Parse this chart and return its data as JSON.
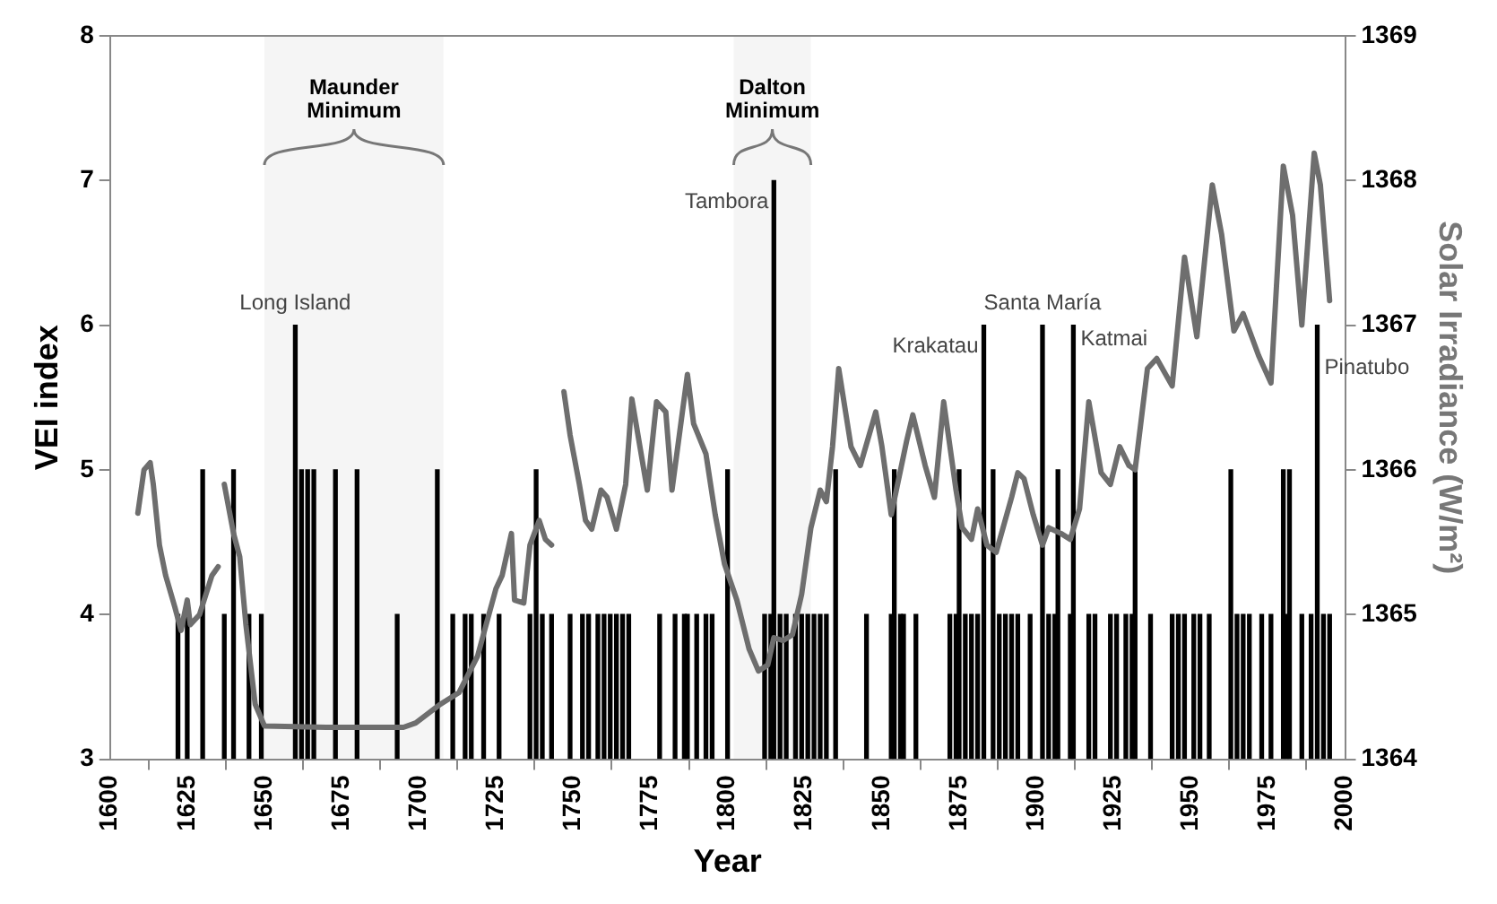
{
  "chart_data": {
    "type": "bar",
    "xlabel": "Year",
    "ylabel": "VEI index",
    "y2label": "Solar Irradiance (W/m²)",
    "xlim": [
      1600,
      2000
    ],
    "xticks": [
      1600,
      1625,
      1650,
      1675,
      1700,
      1725,
      1750,
      1775,
      1800,
      1825,
      1850,
      1875,
      1900,
      1925,
      1950,
      1975,
      2000
    ],
    "ylim": [
      3,
      8
    ],
    "yticks": [
      3,
      4,
      5,
      6,
      7,
      8
    ],
    "y2lim": [
      1364,
      1369
    ],
    "y2ticks": [
      1364,
      1365,
      1366,
      1367,
      1368,
      1369
    ],
    "grid": false,
    "legend": false,
    "marker": "none",
    "line_style": "solid",
    "series": [
      {
        "color": "#000000",
        "x": [
          1622,
          1625,
          1630,
          1637,
          1640,
          1645,
          1649,
          1660,
          1662,
          1664,
          1666,
          1673,
          1680,
          1693,
          1706,
          1711,
          1715,
          1717,
          1721,
          1726,
          1736,
          1738,
          1740,
          1743,
          1749,
          1753,
          1755,
          1758,
          1760,
          1762,
          1764,
          1766,
          1768,
          1778,
          1783,
          1786,
          1787,
          1790,
          1793,
          1795,
          1800,
          1812,
          1814,
          1815,
          1817,
          1819,
          1822,
          1824,
          1826,
          1828,
          1830,
          1832,
          1835,
          1845,
          1853,
          1854,
          1856,
          1857,
          1861,
          1872,
          1874,
          1875,
          1877,
          1879,
          1881,
          1883,
          1886,
          1888,
          1890,
          1892,
          1894,
          1898,
          1902,
          1904,
          1906,
          1907,
          1911,
          1912,
          1917,
          1919,
          1924,
          1926,
          1929,
          1931,
          1932,
          1937,
          1944,
          1946,
          1948,
          1951,
          1953,
          1956,
          1963,
          1965,
          1967,
          1969,
          1973,
          1976,
          1980,
          1981,
          1982,
          1986,
          1989,
          1991,
          1993,
          1995
        ],
        "values": [
          4,
          4,
          5,
          4,
          5,
          4,
          4,
          6,
          5,
          5,
          5,
          5,
          5,
          4,
          5,
          4,
          4,
          4,
          4,
          4,
          4,
          5,
          4,
          4,
          4,
          4,
          4,
          4,
          4,
          4,
          4,
          4,
          4,
          4,
          4,
          4,
          4,
          4,
          4,
          4,
          5,
          4,
          4,
          7,
          4,
          4,
          4,
          4,
          4,
          4,
          4,
          4,
          5,
          4,
          4,
          5,
          4,
          4,
          4,
          4,
          4,
          5,
          4,
          4,
          4,
          6,
          5,
          4,
          4,
          4,
          4,
          4,
          6,
          4,
          4,
          5,
          4,
          6,
          4,
          4,
          4,
          4,
          4,
          4,
          5,
          4,
          4,
          4,
          4,
          4,
          4,
          4,
          5,
          4,
          4,
          4,
          4,
          4,
          5,
          4,
          5,
          4,
          4,
          6,
          4,
          4
        ]
      },
      {
        "type": "line",
        "axis": "y2",
        "color": "#6e6e6e",
        "x": [
          1609,
          1611,
          1613,
          1614,
          1616,
          1618,
          1621,
          1623,
          1625,
          1626,
          1629,
          1633,
          1635,
          1636,
          1637,
          1640,
          1642,
          1644,
          1647,
          1650,
          1670,
          1695,
          1699,
          1707,
          1713,
          1719,
          1725,
          1727,
          1730,
          1731,
          1734,
          1736,
          1739,
          1741,
          1743,
          1745,
          1747,
          1749,
          1752,
          1754,
          1756,
          1759,
          1761,
          1764,
          1767,
          1769,
          1774,
          1777,
          1780,
          1782,
          1787,
          1789,
          1793,
          1796,
          1799,
          1803,
          1807,
          1810,
          1813,
          1815,
          1818,
          1821,
          1824,
          1827,
          1830,
          1832,
          1834,
          1836,
          1840,
          1843,
          1848,
          1850,
          1853,
          1858,
          1860,
          1864,
          1867,
          1870,
          1874,
          1876,
          1879,
          1881,
          1884,
          1887,
          1892,
          1894,
          1896,
          1899,
          1902,
          1904,
          1908,
          1911,
          1914,
          1917,
          1921,
          1924,
          1927,
          1930,
          1932,
          1936,
          1939,
          1944,
          1948,
          1952,
          1957,
          1960,
          1964,
          1967,
          1972,
          1976,
          1980,
          1983,
          1986,
          1990,
          1992,
          1995
        ],
        "values": [
          1365.7,
          1366.0,
          1366.05,
          1365.9,
          1365.48,
          1365.27,
          1365.05,
          1364.89,
          1365.1,
          1364.93,
          1365.0,
          1365.27,
          1365.33,
          null,
          1365.9,
          1365.56,
          1365.4,
          1364.93,
          1364.38,
          1364.23,
          1364.22,
          1364.22,
          1364.25,
          1364.38,
          1364.46,
          1364.71,
          1365.18,
          1365.27,
          1365.56,
          1365.1,
          1365.08,
          1365.48,
          1365.65,
          1365.52,
          1365.48,
          null,
          1366.54,
          1366.24,
          1365.9,
          1365.65,
          1365.59,
          1365.86,
          1365.81,
          1365.59,
          1365.9,
          1366.49,
          1365.86,
          1366.47,
          1366.4,
          1365.86,
          1366.66,
          1366.32,
          1366.11,
          1365.69,
          1365.35,
          1365.1,
          1364.76,
          1364.61,
          1364.65,
          1364.84,
          1364.82,
          1364.86,
          1365.14,
          1365.6,
          1365.86,
          1365.78,
          1366.16,
          1366.7,
          1366.16,
          1366.03,
          1366.4,
          1366.16,
          1365.69,
          1366.2,
          1366.38,
          1366.03,
          1365.81,
          1366.47,
          1365.86,
          1365.6,
          1365.52,
          1365.73,
          1365.48,
          1365.43,
          1365.81,
          1365.98,
          1365.94,
          1365.69,
          1365.48,
          1365.6,
          1365.56,
          1365.52,
          1365.73,
          1366.47,
          1365.98,
          1365.9,
          1366.16,
          1366.03,
          1366.0,
          1366.7,
          1366.77,
          1366.58,
          1367.47,
          1366.92,
          1367.97,
          1367.63,
          1366.96,
          1367.08,
          1366.79,
          1366.6,
          1368.1,
          1367.76,
          1367.0,
          1368.19,
          1367.97,
          1367.17
        ]
      }
    ],
    "bands": [
      {
        "axis": "x",
        "from": 1650,
        "to": 1708,
        "label": "Maunder Minimum"
      },
      {
        "axis": "x",
        "from": 1802,
        "to": 1827,
        "label": "Dalton Minimum"
      }
    ],
    "annotations": [
      {
        "text": "Long Island",
        "x": 1660,
        "y": 6
      },
      {
        "text": "Tambora",
        "x": 1815,
        "y": 7
      },
      {
        "text": "Krakatau",
        "x": 1883,
        "y": 6
      },
      {
        "text": "Santa María",
        "x": 1902,
        "y": 6
      },
      {
        "text": "Katmai",
        "x": 1912,
        "y": 6
      },
      {
        "text": "Pinatubo",
        "x": 1991,
        "y": 6
      }
    ]
  }
}
